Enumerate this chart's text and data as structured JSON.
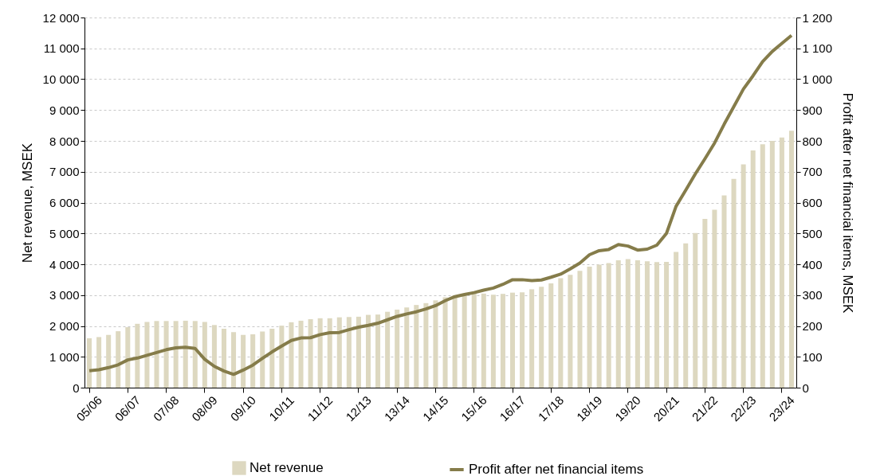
{
  "chart_data": {
    "type": "bar",
    "categories": [
      "05/06",
      null,
      null,
      null,
      "06/07",
      null,
      null,
      null,
      "07/08",
      null,
      null,
      null,
      "08/09",
      null,
      null,
      null,
      "09/10",
      null,
      null,
      null,
      "10/11",
      null,
      null,
      null,
      "11/12",
      null,
      null,
      null,
      "12/13",
      null,
      null,
      null,
      "13/14",
      null,
      null,
      null,
      "14/15",
      null,
      null,
      null,
      "15/16",
      null,
      null,
      null,
      "16/17",
      null,
      null,
      null,
      "17/18",
      null,
      null,
      null,
      "18/19",
      null,
      null,
      null,
      "19/20",
      null,
      null,
      null,
      "20/21",
      null,
      null,
      null,
      "21/22",
      null,
      null,
      null,
      "22/23",
      null,
      null,
      null,
      "23/24",
      null
    ],
    "series": [
      {
        "name": "Net revenue",
        "color": "#ddd8c0",
        "values": [
          1600,
          1640,
          1710,
          1830,
          1960,
          2070,
          2130,
          2160,
          2160,
          2160,
          2170,
          2160,
          2130,
          2030,
          1910,
          1800,
          1710,
          1730,
          1820,
          1910,
          2010,
          2120,
          2170,
          2220,
          2250,
          2250,
          2280,
          2290,
          2300,
          2360,
          2370,
          2460,
          2530,
          2600,
          2680,
          2740,
          2830,
          2930,
          2980,
          3010,
          3040,
          3050,
          3010,
          3040,
          3080,
          3090,
          3190,
          3270,
          3380,
          3550,
          3660,
          3790,
          3920,
          3990,
          4040,
          4130,
          4170,
          4130,
          4100,
          4070,
          4080,
          4400,
          4680,
          5010,
          5470,
          5770,
          6230,
          6770,
          7240,
          7690,
          7890,
          8000,
          8110,
          8330
        ]
      },
      {
        "name": "Profit after net financial items",
        "type": "line",
        "axis": "y2",
        "color": "#857c4a",
        "values": [
          55,
          58,
          65,
          74,
          90,
          96,
          105,
          114,
          123,
          129,
          131,
          127,
          92,
          69,
          54,
          43,
          57,
          73,
          95,
          116,
          135,
          153,
          161,
          162,
          172,
          178,
          179,
          188,
          196,
          202,
          209,
          220,
          231,
          239,
          246,
          255,
          266,
          282,
          295,
          302,
          308,
          316,
          323,
          335,
          350,
          350,
          347,
          349,
          358,
          368,
          385,
          404,
          431,
          444,
          448,
          464,
          459,
          446,
          449,
          462,
          500,
          588,
          640,
          693,
          742,
          793,
          854,
          911,
          968,
          1011,
          1057,
          1090,
          1116,
          1142
        ]
      }
    ],
    "ylabel": "Net revenue, MSEK",
    "y2label": "Profit after net financial items, MSEK",
    "ylim": [
      0,
      12000
    ],
    "yticks": [
      0,
      {
        "value": 1000,
        "label": "1 000"
      },
      {
        "value": 2000,
        "label": "2 000"
      },
      {
        "value": 3000,
        "label": "3 000"
      },
      {
        "value": 4000,
        "label": "4 000"
      },
      {
        "value": 5000,
        "label": "5 000"
      },
      {
        "value": 6000,
        "label": "6 000"
      },
      {
        "value": 7000,
        "label": "7 000"
      },
      {
        "value": 8000,
        "label": "8 000"
      },
      {
        "value": 9000,
        "label": "9 000"
      },
      {
        "value": 10000,
        "label": "10 000"
      },
      {
        "value": 11000,
        "label": "11 000"
      },
      {
        "value": 12000,
        "label": "12 000"
      }
    ],
    "y2lim": [
      0,
      1200
    ],
    "y2ticks": [
      0,
      100,
      200,
      300,
      400,
      500,
      600,
      700,
      800,
      900,
      {
        "value": 1000,
        "label": "1 000"
      },
      {
        "value": 1100,
        "label": "1 100"
      },
      {
        "value": 1200,
        "label": "1 200"
      }
    ],
    "grid": "y",
    "legend": "bottom"
  }
}
